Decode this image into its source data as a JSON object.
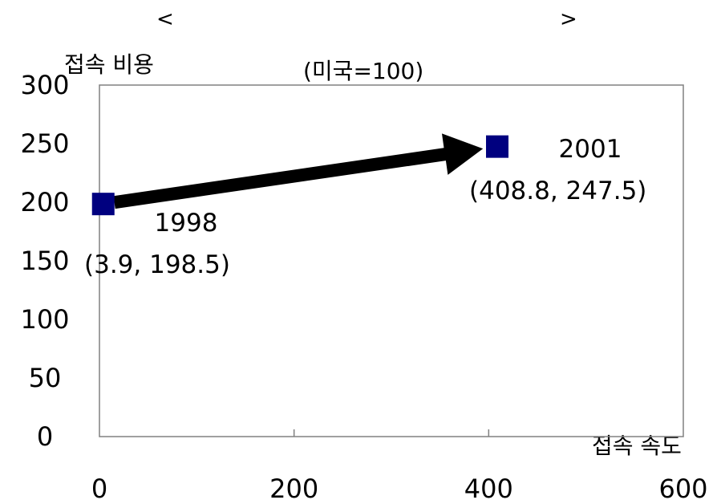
{
  "chart_data": {
    "type": "scatter",
    "title_left": "<",
    "title_right": ">",
    "ylabel": "접속 비용",
    "subtitle": "(미국=100)",
    "xlabel": "접속 속도",
    "xlim": [
      0,
      600
    ],
    "ylim": [
      0,
      300
    ],
    "x_ticks": [
      0,
      200,
      400,
      600
    ],
    "y_ticks": [
      0,
      50,
      100,
      150,
      200,
      250,
      300
    ],
    "grid": false,
    "marker_color": "#00007f",
    "arrow_color": "#000000",
    "points": [
      {
        "x": 3.9,
        "y": 198.5,
        "year": "1998",
        "coord_label": "(3.9, 198.5)"
      },
      {
        "x": 408.8,
        "y": 247.5,
        "year": "2001",
        "coord_label": "(408.8, 247.5)"
      }
    ],
    "arrow": {
      "from": 0,
      "to": 1
    }
  }
}
